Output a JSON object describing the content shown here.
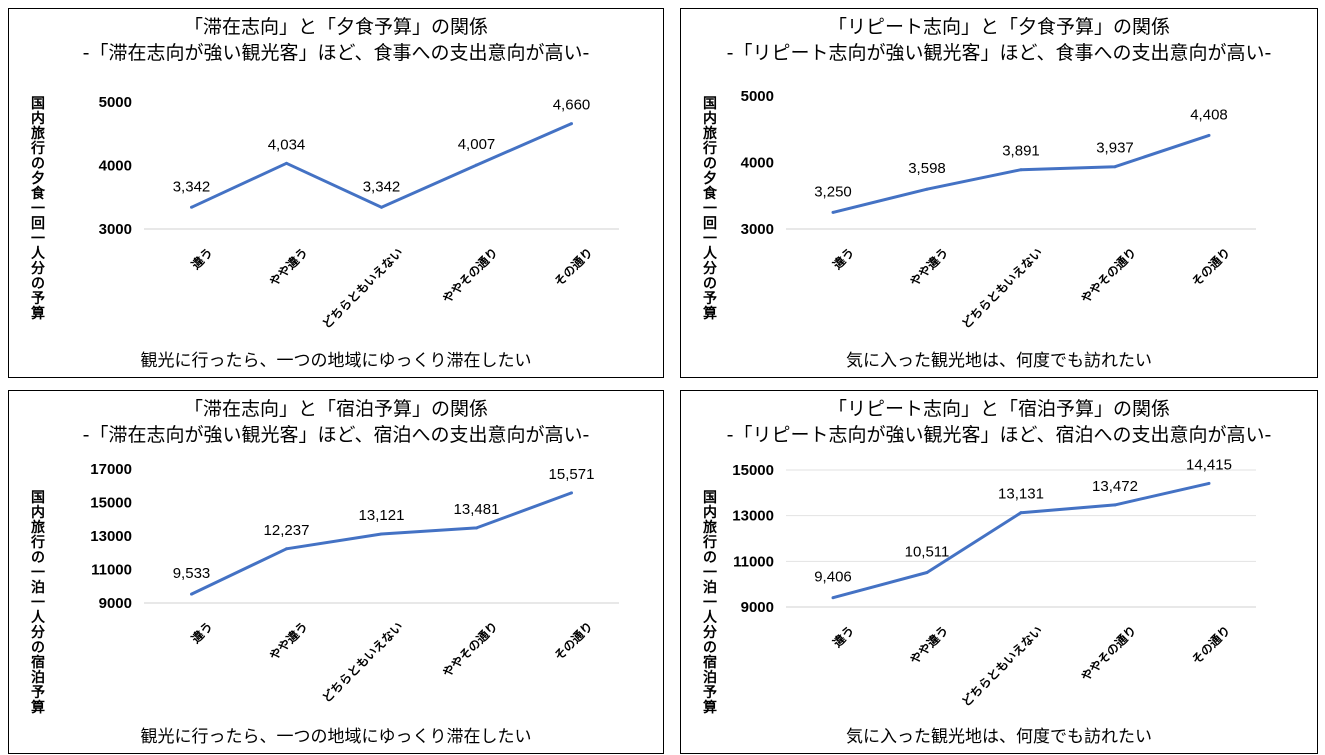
{
  "chart_data": [
    {
      "type": "line",
      "title": "「滞在志向」と「夕食予算」の関係",
      "subtitle": "-「滞在志向が強い観光客」ほど、食事への支出意向が高い-",
      "ylabel": "国内旅行の夕食一回一人分の予算",
      "xlabel": "観光に行ったら、一つの地域にゆっくり滞在したい",
      "categories": [
        "違う",
        "やや違う",
        "どちらともいえない",
        "ややその通り",
        "その通り"
      ],
      "values": [
        3342,
        4034,
        3342,
        4007,
        4660
      ],
      "value_labels": [
        "3,342",
        "4,034",
        "3,342",
        "4,007",
        "4,660"
      ],
      "ylim": [
        3000,
        5000
      ],
      "yticks": [
        3000,
        4000,
        5000
      ],
      "grid": false,
      "color": "#4472C4"
    },
    {
      "type": "line",
      "title": "「リピート志向」と「夕食予算」の関係",
      "subtitle": "-「リピート志向が強い観光客」ほど、食事への支出意向が高い-",
      "ylabel": "国内旅行の夕食一回一人分の予算",
      "xlabel": "気に入った観光地は、何度でも訪れたい",
      "categories": [
        "違う",
        "やや違う",
        "どちらともいえない",
        "ややその通り",
        "その通り"
      ],
      "values": [
        3250,
        3598,
        3891,
        3937,
        4408
      ],
      "value_labels": [
        "3,250",
        "3,598",
        "3,891",
        "3,937",
        "4,408"
      ],
      "ylim": [
        3000,
        5000
      ],
      "yticks": [
        3000,
        4000,
        5000
      ],
      "grid": false,
      "color": "#4472C4"
    },
    {
      "type": "line",
      "title": "「滞在志向」と「宿泊予算」の関係",
      "subtitle": "-「滞在志向が強い観光客」ほど、宿泊への支出意向が高い-",
      "ylabel": "国内旅行の一泊一人分の宿泊予算",
      "xlabel": "観光に行ったら、一つの地域にゆっくり滞在したい",
      "categories": [
        "違う",
        "やや違う",
        "どちらともいえない",
        "ややその通り",
        "その通り"
      ],
      "values": [
        9533,
        12237,
        13121,
        13481,
        15571
      ],
      "value_labels": [
        "9,533",
        "12,237",
        "13,121",
        "13,481",
        "15,571"
      ],
      "ylim": [
        9000,
        17000
      ],
      "yticks": [
        9000,
        11000,
        13000,
        15000,
        17000
      ],
      "grid": false,
      "color": "#4472C4"
    },
    {
      "type": "line",
      "title": "「リピート志向」と「宿泊予算」の関係",
      "subtitle": "-「リピート志向が強い観光客」ほど、宿泊への支出意向が高い-",
      "ylabel": "国内旅行の一泊一人分の宿泊予算",
      "xlabel": "気に入った観光地は、何度でも訪れたい",
      "categories": [
        "違う",
        "やや違う",
        "どちらともいえない",
        "ややその通り",
        "その通り"
      ],
      "values": [
        9406,
        10511,
        13131,
        13472,
        14415
      ],
      "value_labels": [
        "9,406",
        "10,511",
        "13,131",
        "13,472",
        "14,415"
      ],
      "ylim": [
        9000,
        15000
      ],
      "yticks": [
        9000,
        11000,
        13000,
        15000
      ],
      "grid": true,
      "color": "#4472C4"
    }
  ]
}
